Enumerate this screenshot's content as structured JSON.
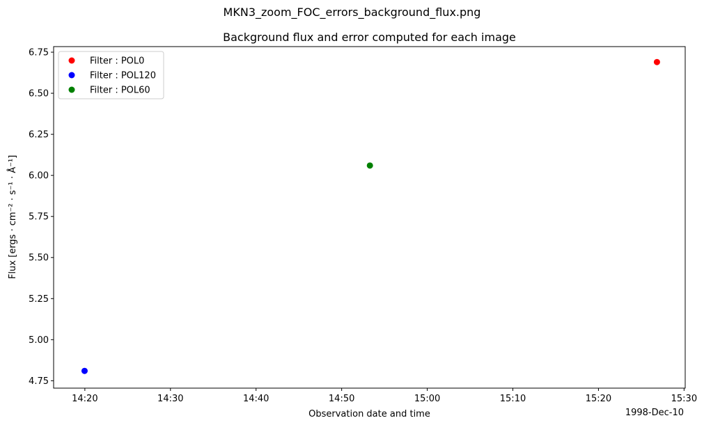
{
  "chart_data": {
    "type": "scatter",
    "suptitle": "MKN3_zoom_FOC_errors_background_flux.png",
    "title": "Background flux and error computed for each image",
    "xlabel": "Observation date and time",
    "ylabel": "Flux [ergs · cm⁻² · s⁻¹ · Å⁻¹]",
    "x_offset_label": "1998-Dec-10",
    "x_ticks": [
      "14:20",
      "14:30",
      "14:40",
      "14:50",
      "15:00",
      "15:10",
      "15:20",
      "15:30"
    ],
    "y_ticks": [
      "4.75",
      "5.00",
      "5.25",
      "5.50",
      "5.75",
      "6.00",
      "6.25",
      "6.50",
      "6.75"
    ],
    "xlim": [
      "1998-12-10 14:16:21",
      "1998-12-10 15:30:08"
    ],
    "ylim": [
      4.705,
      6.784
    ],
    "grid": false,
    "legend_position": "top-left",
    "series": [
      {
        "name": "Filter : POL0",
        "color": "#ff0000",
        "points": [
          {
            "x": "1998-12-10 15:26:50",
            "y": 6.69
          }
        ]
      },
      {
        "name": "Filter : POL120",
        "color": "#0000ff",
        "points": [
          {
            "x": "1998-12-10 14:19:58",
            "y": 4.81
          }
        ]
      },
      {
        "name": "Filter : POL60",
        "color": "#008000",
        "points": [
          {
            "x": "1998-12-10 14:53:18",
            "y": 6.06
          }
        ]
      }
    ]
  }
}
